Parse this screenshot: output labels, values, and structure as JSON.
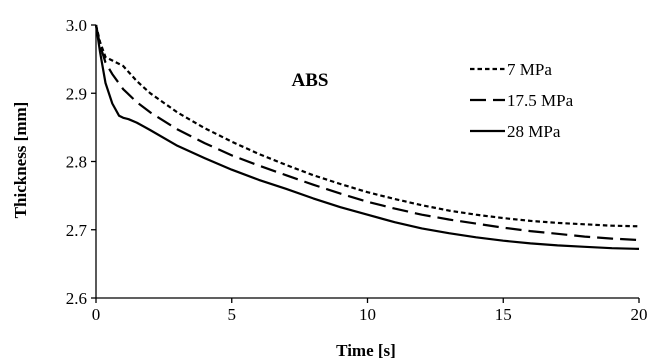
{
  "chart_data": {
    "type": "line",
    "title": "",
    "annotation": "ABS",
    "xlabel": "Time [s]",
    "ylabel": "Thickness [mm]",
    "xlim": [
      0,
      20
    ],
    "ylim": [
      2.6,
      3.0
    ],
    "xticks": [
      0,
      5,
      10,
      15,
      20
    ],
    "xtick_labels": [
      "0",
      "5",
      "10",
      "15",
      "20"
    ],
    "yticks": [
      2.6,
      2.7,
      2.8,
      2.9,
      3.0
    ],
    "ytick_labels": [
      "2.6",
      "2.7",
      "2.8",
      "2.9",
      "3.0"
    ],
    "grid": false,
    "legend_position": "top-right",
    "series": [
      {
        "name": "7 MPa",
        "dash": "short-dash",
        "x": [
          0,
          0.15,
          0.35,
          0.6,
          1,
          1.5,
          2,
          3,
          4,
          5,
          6,
          7,
          8,
          9,
          10,
          11,
          12,
          13,
          14,
          15,
          16,
          17,
          18,
          19,
          20
        ],
        "y": [
          3.0,
          2.975,
          2.953,
          2.948,
          2.94,
          2.918,
          2.9,
          2.872,
          2.849,
          2.829,
          2.811,
          2.795,
          2.78,
          2.767,
          2.755,
          2.745,
          2.736,
          2.728,
          2.722,
          2.717,
          2.713,
          2.71,
          2.708,
          2.706,
          2.705
        ]
      },
      {
        "name": "17.5 MPa",
        "dash": "long-dash",
        "x": [
          0,
          0.15,
          0.35,
          0.6,
          1,
          1.5,
          2,
          3,
          4,
          5,
          6,
          7,
          8,
          9,
          10,
          11,
          12,
          13,
          14,
          15,
          16,
          17,
          18,
          19,
          20
        ],
        "y": [
          3.0,
          2.97,
          2.945,
          2.928,
          2.906,
          2.887,
          2.872,
          2.847,
          2.827,
          2.809,
          2.794,
          2.78,
          2.766,
          2.753,
          2.741,
          2.731,
          2.722,
          2.715,
          2.709,
          2.703,
          2.698,
          2.694,
          2.69,
          2.687,
          2.685
        ]
      },
      {
        "name": "28 MPa",
        "dash": "solid",
        "x": [
          0,
          0.15,
          0.35,
          0.6,
          0.85,
          1,
          1.2,
          1.5,
          2,
          3,
          4,
          5,
          6,
          7,
          8,
          9,
          10,
          11,
          12,
          13,
          14,
          15,
          16,
          17,
          18,
          19,
          20
        ],
        "y": [
          3.0,
          2.96,
          2.915,
          2.885,
          2.867,
          2.864,
          2.862,
          2.857,
          2.846,
          2.823,
          2.805,
          2.788,
          2.773,
          2.76,
          2.746,
          2.733,
          2.722,
          2.711,
          2.702,
          2.695,
          2.689,
          2.684,
          2.68,
          2.677,
          2.675,
          2.673,
          2.672
        ]
      }
    ]
  }
}
